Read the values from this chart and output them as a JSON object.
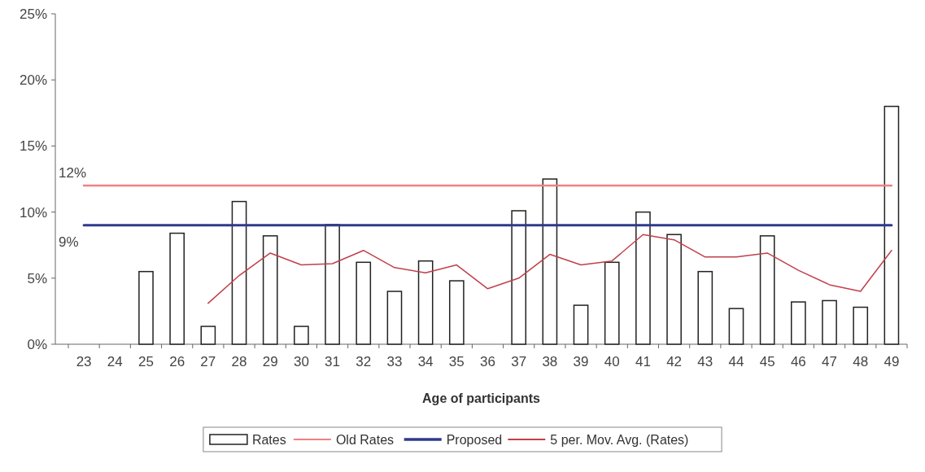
{
  "chart_data": {
    "type": "bar",
    "xlabel": "Age of participants",
    "categories": [
      "23",
      "24",
      "25",
      "26",
      "27",
      "28",
      "29",
      "30",
      "31",
      "32",
      "33",
      "34",
      "35",
      "36",
      "37",
      "38",
      "39",
      "40",
      "41",
      "42",
      "43",
      "44",
      "45",
      "46",
      "47",
      "48",
      "49"
    ],
    "series": [
      {
        "name": "Rates",
        "color": "#ffffff",
        "values": [
          null,
          null,
          5.5,
          8.4,
          1.35,
          10.8,
          8.2,
          1.35,
          9.05,
          6.2,
          4.0,
          6.3,
          4.8,
          null,
          10.1,
          12.5,
          2.95,
          6.2,
          10.0,
          8.3,
          5.5,
          2.7,
          8.2,
          3.2,
          3.3,
          2.8,
          18.0
        ]
      },
      {
        "name": "Old Rates",
        "type": "line",
        "color": "#f08080",
        "values": [
          12,
          12,
          12,
          12,
          12,
          12,
          12,
          12,
          12,
          12,
          12,
          12,
          12,
          12,
          12,
          12,
          12,
          12,
          12,
          12,
          12,
          12,
          12,
          12,
          12,
          12,
          12
        ]
      },
      {
        "name": "Proposed",
        "type": "line",
        "color": "#2e3a8c",
        "values": [
          9,
          9,
          9,
          9,
          9,
          9,
          9,
          9,
          9,
          9,
          9,
          9,
          9,
          9,
          9,
          9,
          9,
          9,
          9,
          9,
          9,
          9,
          9,
          9,
          9,
          9,
          9
        ]
      },
      {
        "name": "5 per. Mov. Avg. (Rates)",
        "type": "line",
        "color": "#c0404a",
        "values": [
          null,
          null,
          null,
          null,
          3.1,
          5.2,
          6.9,
          6.0,
          6.1,
          7.1,
          5.8,
          5.4,
          6.0,
          4.2,
          5.0,
          6.8,
          6.0,
          6.3,
          8.3,
          7.9,
          6.6,
          6.6,
          6.9,
          5.6,
          4.5,
          4.0,
          7.1
        ]
      }
    ],
    "ylim": [
      0,
      25
    ],
    "yticks": [
      {
        "value": 0,
        "label": "0%"
      },
      {
        "value": 5,
        "label": "5%"
      },
      {
        "value": 10,
        "label": "10%"
      },
      {
        "value": 15,
        "label": "15%"
      },
      {
        "value": 20,
        "label": "20%"
      },
      {
        "value": 25,
        "label": "25%"
      }
    ],
    "annotations": [
      {
        "text": "12%",
        "x": "23",
        "y": 12
      },
      {
        "text": "9%",
        "x": "23",
        "y": 9
      }
    ],
    "legend": "bottom",
    "grid": false
  }
}
